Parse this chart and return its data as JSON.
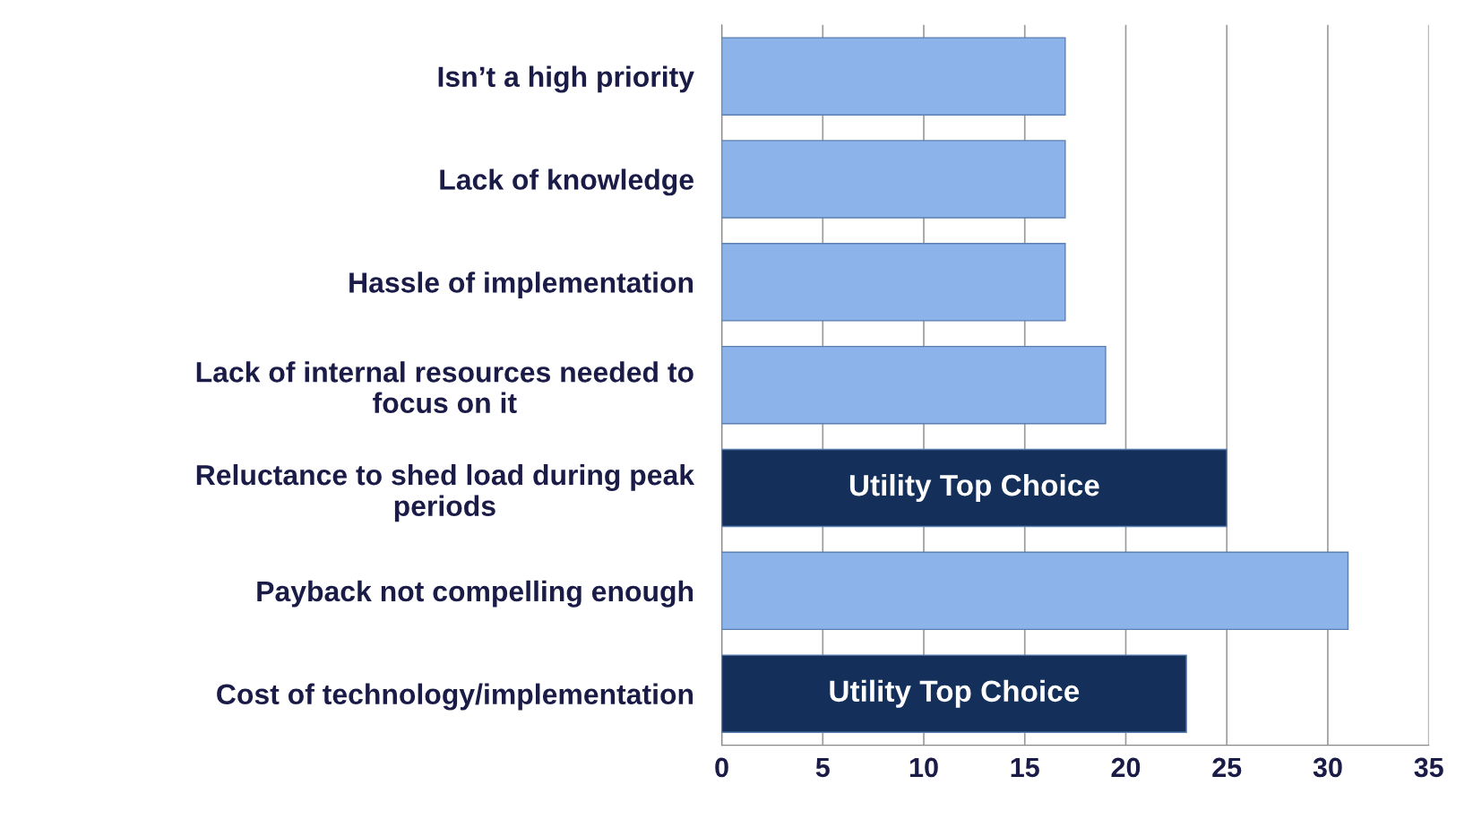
{
  "chart_data": {
    "type": "bar",
    "orientation": "horizontal",
    "categories": [
      "Isn’t a high priority",
      "Lack of knowledge",
      "Hassle of implementation",
      "Lack of internal resources needed to\nfocus on it",
      "Reluctance to shed load during peak\nperiods",
      "Payback not compelling enough",
      "Cost of technology/implementation"
    ],
    "values": [
      17,
      17,
      17,
      19,
      25,
      31,
      23
    ],
    "colors": [
      "#8db4ea",
      "#8db4ea",
      "#8db4ea",
      "#8db4ea",
      "#14305a",
      "#8db4ea",
      "#14305a"
    ],
    "xlim": [
      0,
      35
    ],
    "xticks": [
      0,
      5,
      10,
      15,
      20,
      25,
      30,
      35
    ],
    "grid": "x",
    "annotations": [
      "Utility Top Choice",
      "Utility Top Choice"
    ]
  }
}
